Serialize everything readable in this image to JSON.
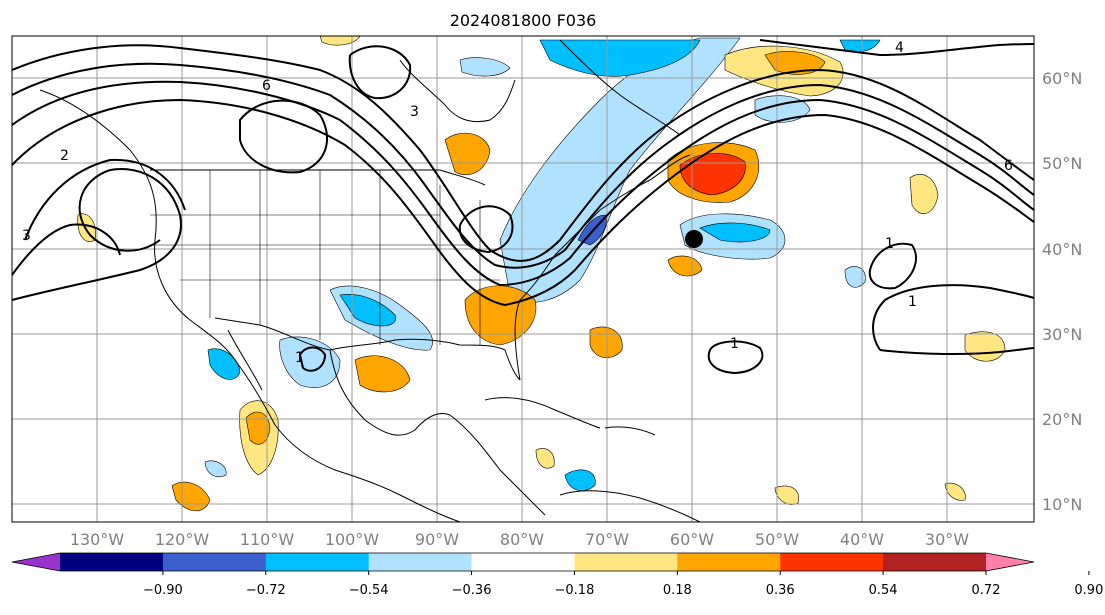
{
  "title": "2024081800 F036",
  "longitude_labels": [
    "130°W",
    "120°W",
    "110°W",
    "100°W",
    "90°W",
    "80°W",
    "70°W",
    "60°W",
    "50°W",
    "40°W",
    "30°W"
  ],
  "latitude_labels": [
    "60°N",
    "50°N",
    "40°N",
    "30°N",
    "20°N",
    "10°N"
  ],
  "colorbar": {
    "tick_labels": [
      "−0.90",
      "−0.72",
      "−0.54",
      "−0.36",
      "−0.18",
      "0.18",
      "0.36",
      "0.54",
      "0.72",
      "0.90"
    ],
    "colors": [
      "#9933cc",
      "#000080",
      "#3a5fcd",
      "#00bfff",
      "#b0e2ff",
      "#ffffff",
      "#ffe680",
      "#ffa500",
      "#ff3300",
      "#b22222",
      "#ff80aa"
    ],
    "extend": "both"
  },
  "contour_labels": [
    "2",
    "3",
    "4",
    "6",
    "3",
    "6",
    "1",
    "1",
    "1",
    "1"
  ],
  "marker": "black-dot",
  "colors": {
    "land_outline": "#000000",
    "grid": "#999999",
    "contour": "#000000"
  }
}
